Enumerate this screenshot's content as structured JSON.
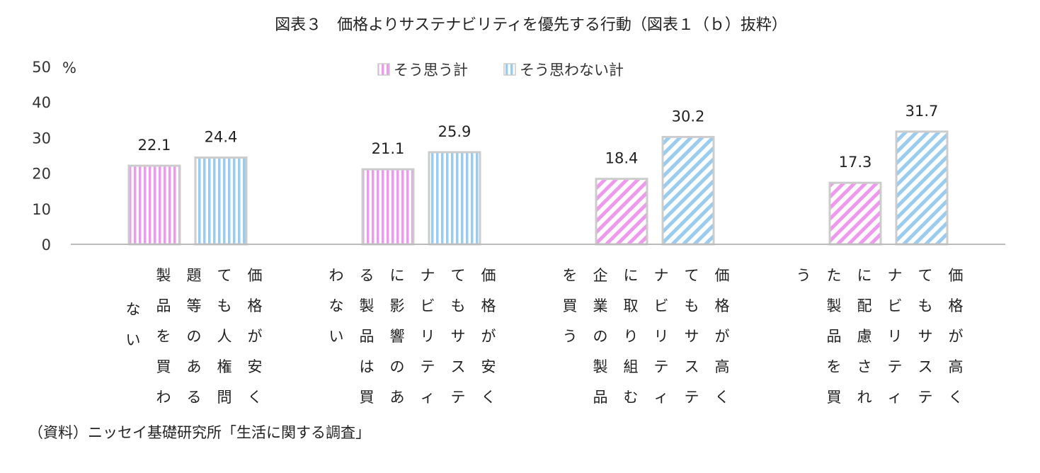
{
  "title": "図表３　価格よりサステナビリティを優先する行動（図表１（ｂ）抜粋）",
  "source": "（資料）ニッセイ基礎研究所「生活に関する調査」",
  "y_unit": "%",
  "colors": {
    "pink": "#ee99ee",
    "blue": "#99ccee",
    "border": "#cccccc",
    "axis": "#bbbbbb"
  },
  "chart_data": {
    "type": "bar",
    "categories": [
      "価格が安くても人権問題等のある製品を買わない",
      "価格が安くてもサステナビリティに影響のある製品は買わない",
      "価格が高くてもサステナビリティに取り組む企業の製品を買う",
      "価格が高くてもサステナビリティに配慮された製品を買う"
    ],
    "series": [
      {
        "name": "そう思う計",
        "values": [
          22.1,
          21.1,
          18.4,
          17.3
        ]
      },
      {
        "name": "そう思わない計",
        "values": [
          24.4,
          25.9,
          30.2,
          31.7
        ]
      }
    ],
    "ylim": [
      0,
      50
    ],
    "yticks": [
      0,
      10,
      20,
      30,
      40,
      50
    ],
    "legend_position": "top-center",
    "grid": false,
    "patterns": [
      [
        "vertical",
        "vertical"
      ],
      [
        "vertical",
        "vertical"
      ],
      [
        "diagonal",
        "diagonal"
      ],
      [
        "diagonal",
        "diagonal"
      ]
    ]
  }
}
